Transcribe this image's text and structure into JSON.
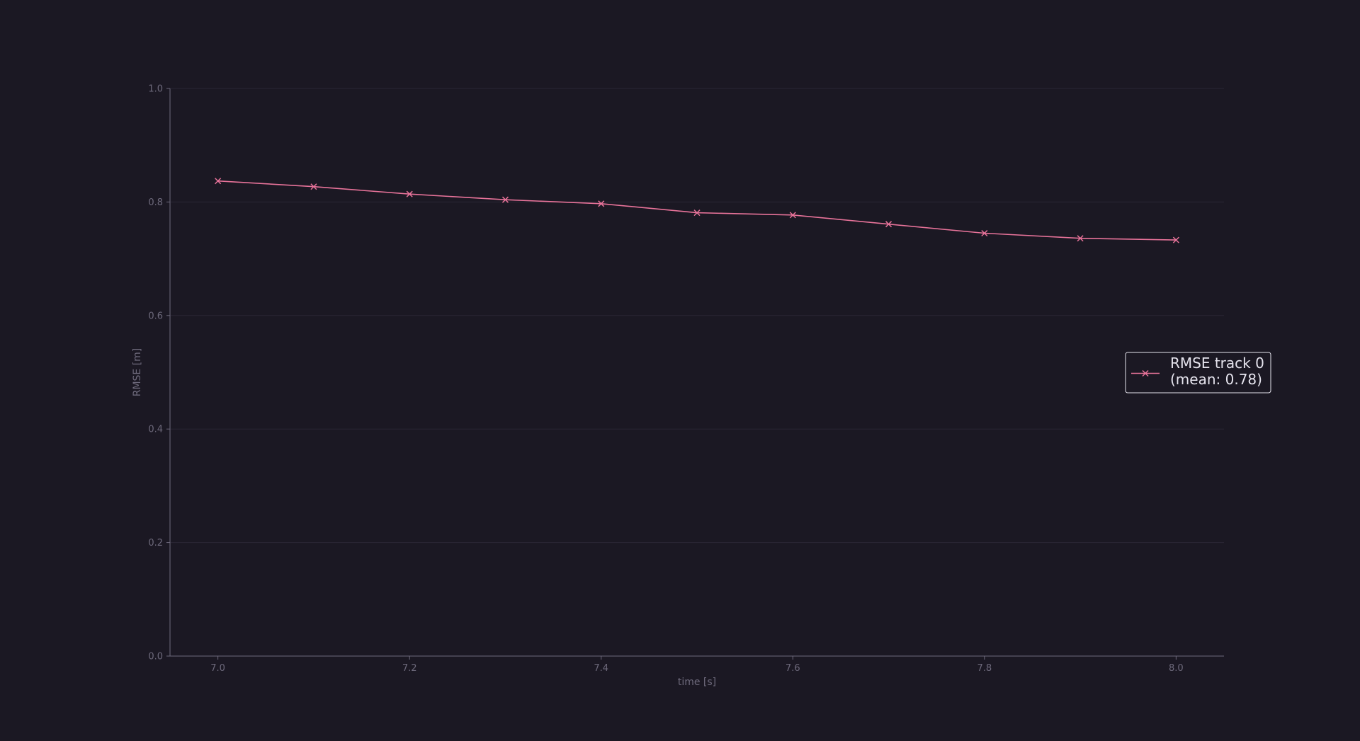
{
  "chart_data": {
    "type": "line",
    "xlabel": "time [s]",
    "ylabel": "RMSE [m]",
    "xlim": [
      6.95,
      8.05
    ],
    "ylim": [
      0.0,
      1.0
    ],
    "x_ticks": [
      "7.0",
      "7.2",
      "7.4",
      "7.6",
      "7.8",
      "8.0"
    ],
    "y_ticks": [
      "0.0",
      "0.2",
      "0.4",
      "0.6",
      "0.8",
      "1.0"
    ],
    "grid": "horizontal",
    "legend_position": "right",
    "series": [
      {
        "name": "RMSE track 0\n(mean: 0.78)",
        "legend_lines": [
          "RMSE track 0",
          "(mean: 0.78)"
        ],
        "color": "#e8739a",
        "marker": "x",
        "x": [
          7.0,
          7.1,
          7.2,
          7.3,
          7.4,
          7.5,
          7.6,
          7.7,
          7.8,
          7.9,
          8.0
        ],
        "y": [
          0.837,
          0.827,
          0.814,
          0.804,
          0.797,
          0.781,
          0.777,
          0.761,
          0.745,
          0.736,
          0.733
        ]
      }
    ]
  },
  "colors": {
    "background": "#1b1823",
    "axis": "#6e6a7c",
    "grid": "#2a2634",
    "legend_border": "#e6e4ee"
  }
}
